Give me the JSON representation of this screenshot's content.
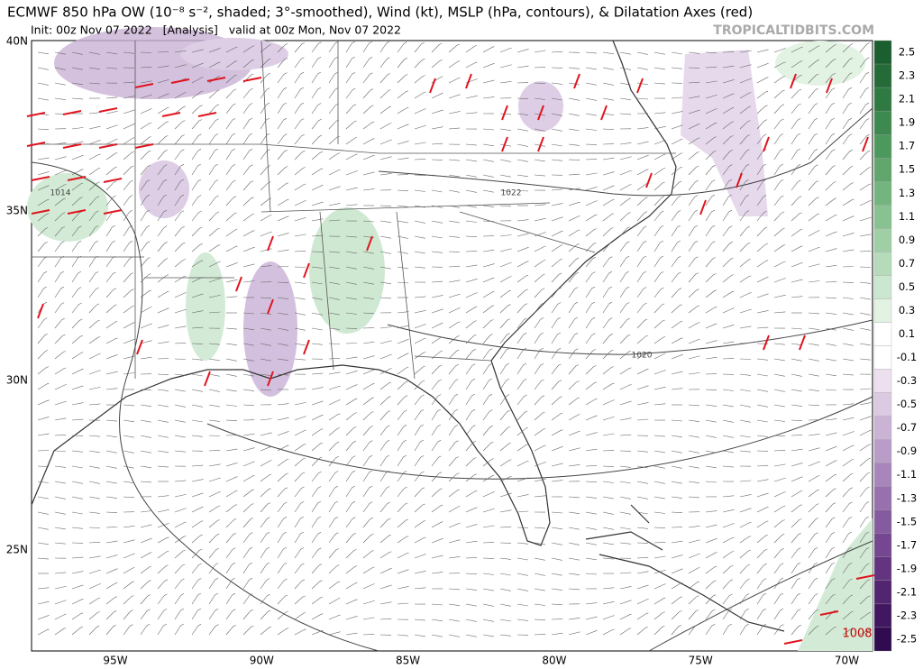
{
  "header": {
    "title": "ECMWF 850 hPa OW (10⁻⁸ s⁻², shaded; 3°-smoothed), Wind (kt), MSLP (hPa, contours), & Dilatation Axes (red)",
    "subtitle": "Init: 00z Nov 07 2022   [Analysis]   valid at 00z Mon, Nov 07 2022",
    "site": "TROPICALTIDBITS.COM"
  },
  "map": {
    "lat_labels": [
      "40N",
      "35N",
      "30N",
      "25N"
    ],
    "lon_labels": [
      "95W",
      "90W",
      "85W",
      "80W",
      "75W",
      "70W"
    ],
    "contour_labels": [
      "1014",
      "1022",
      "1020",
      "1008"
    ]
  },
  "colorbar": {
    "labels": [
      "2.5",
      "2.3",
      "2.1",
      "1.9",
      "1.7",
      "1.5",
      "1.3",
      "1.1",
      "0.9",
      "0.7",
      "0.5",
      "0.3",
      "0.1",
      "-0.1",
      "-0.3",
      "-0.5",
      "-0.7",
      "-0.9",
      "-1.1",
      "-1.3",
      "-1.5",
      "-1.7",
      "-1.9",
      "-2.1",
      "-2.3",
      "-2.5"
    ],
    "colors": [
      "#1b5e30",
      "#246b38",
      "#2f7a43",
      "#3d894f",
      "#4d985d",
      "#60a66d",
      "#74b47f",
      "#89c292",
      "#a0cfa6",
      "#b6dbba",
      "#cce7cf",
      "#e2f2e3",
      "#ffffff",
      "#ffffff",
      "#ece0ef",
      "#dccaE3",
      "#cbb3d6",
      "#ba9cc9",
      "#a886bb",
      "#9770ad",
      "#855b9f",
      "#744790",
      "#633581",
      "#522571",
      "#411761",
      "#300b50"
    ]
  }
}
